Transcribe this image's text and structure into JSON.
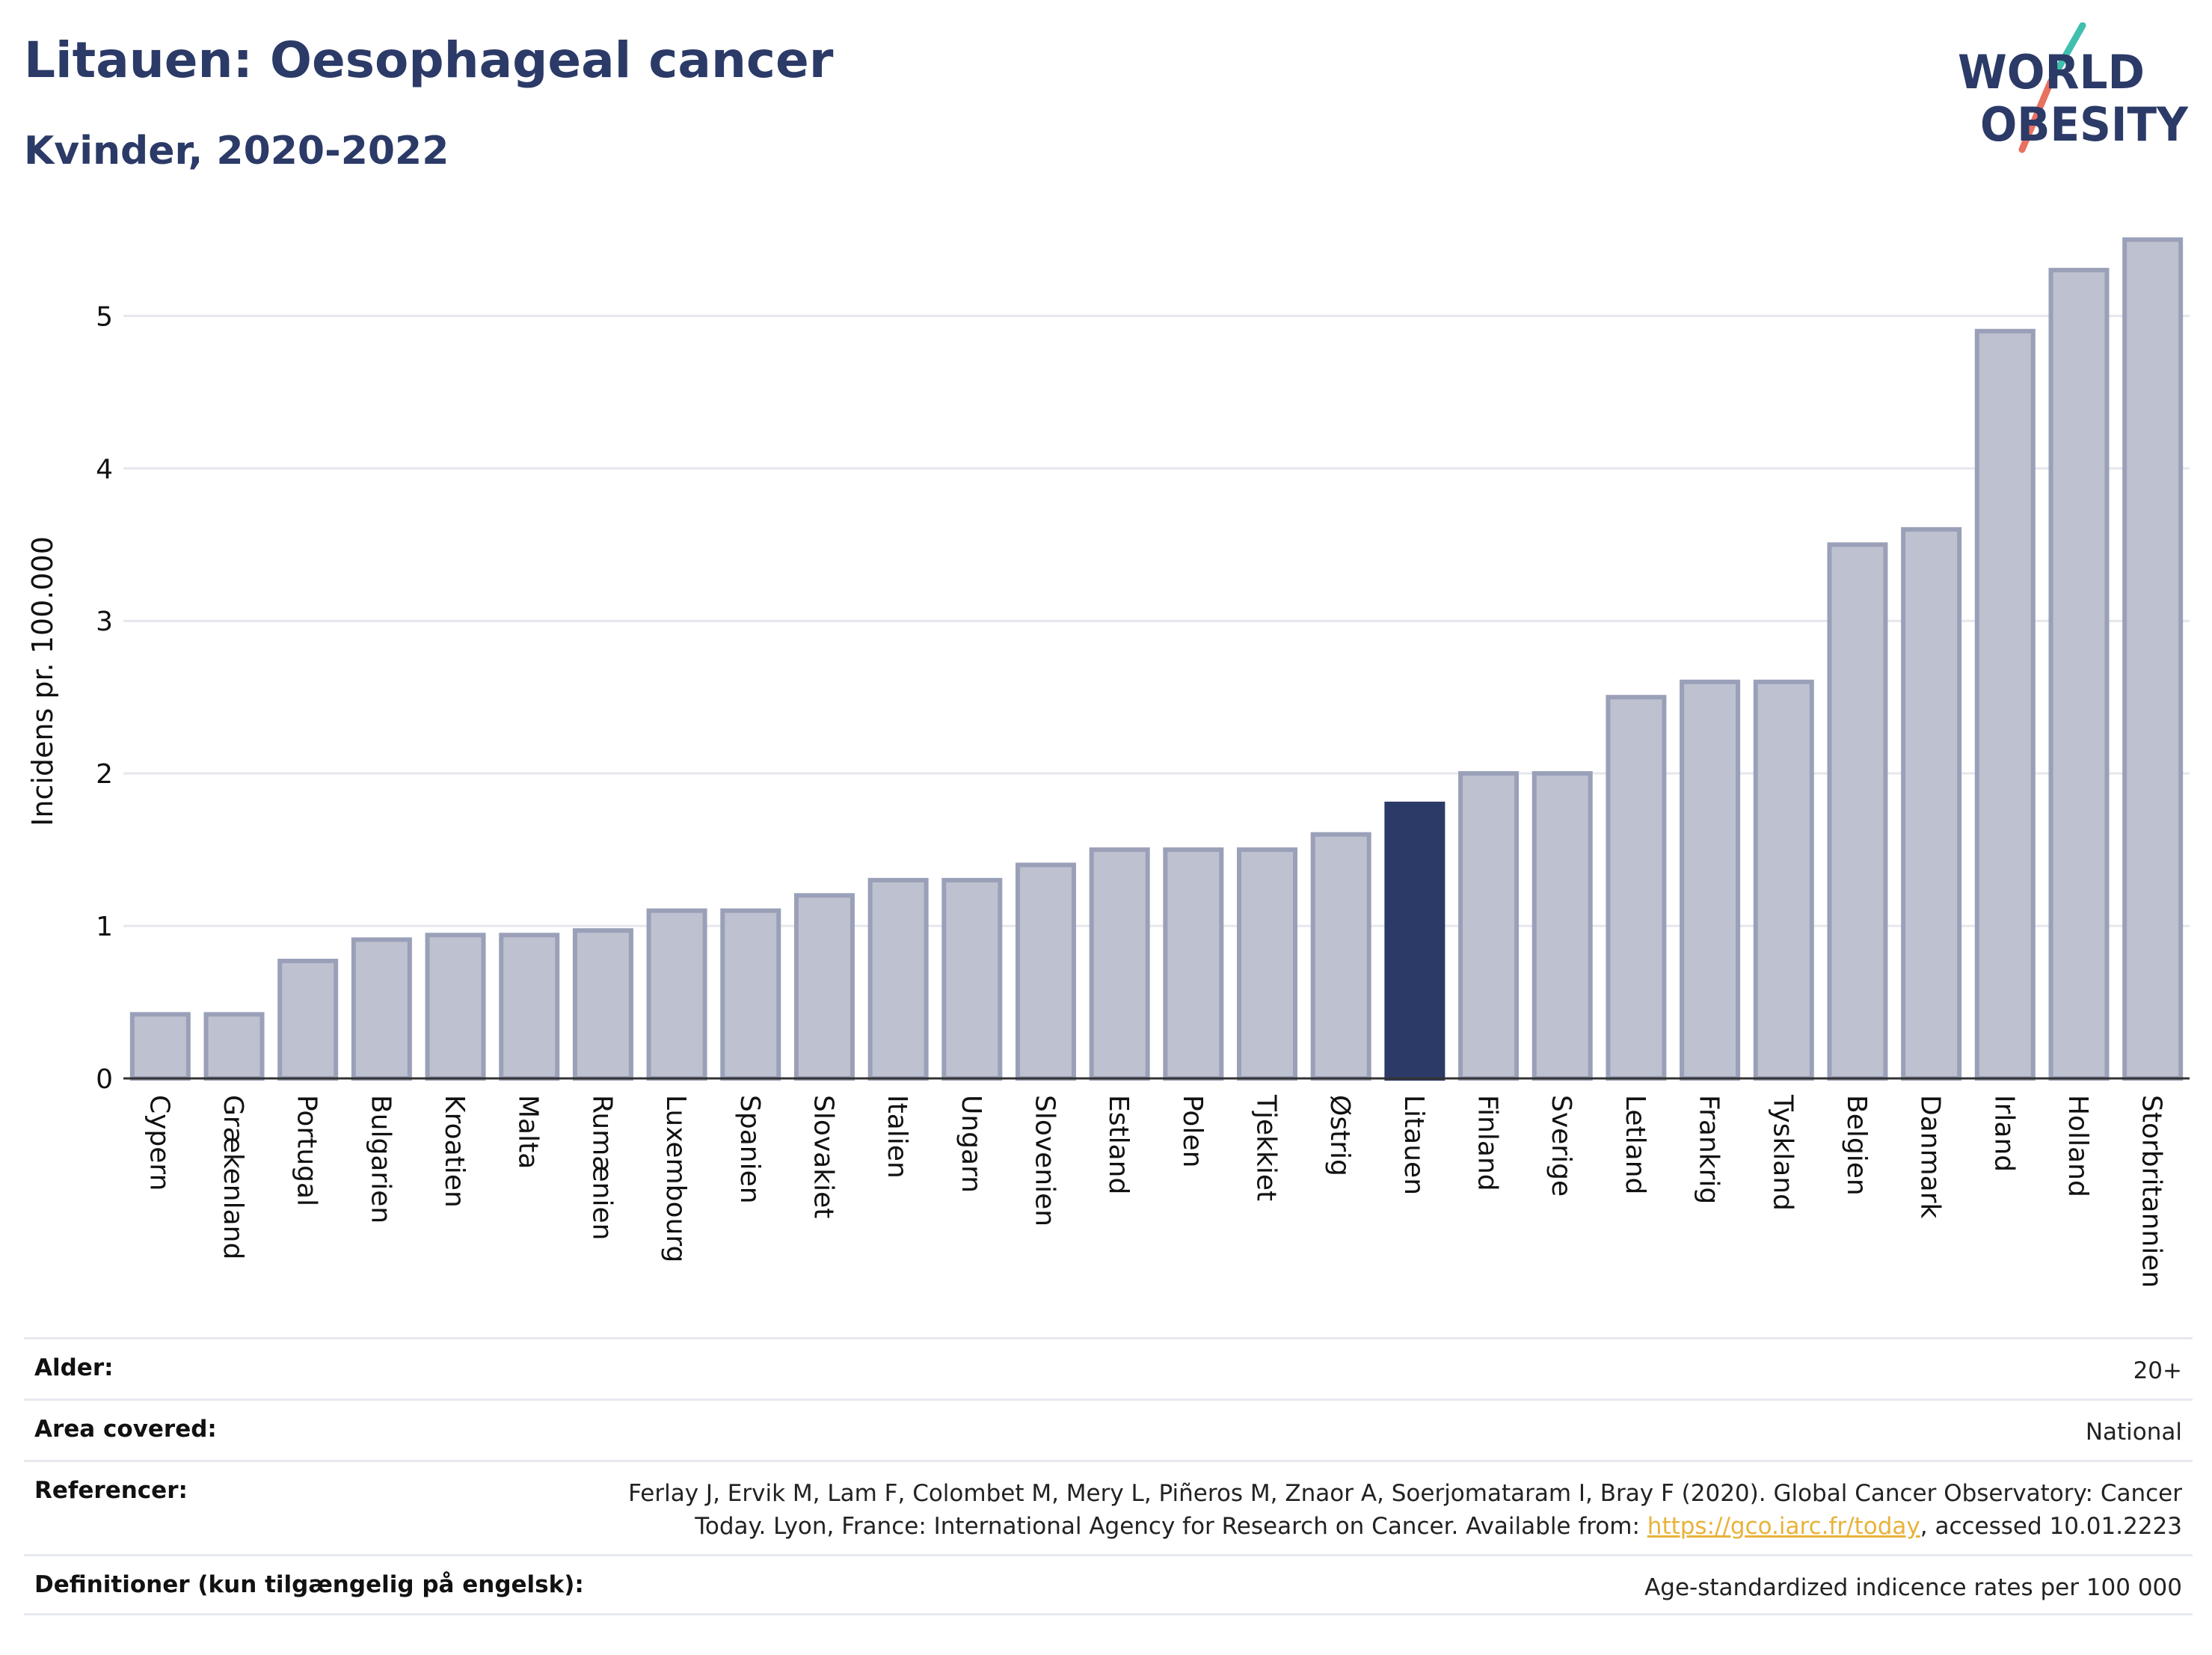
{
  "header": {
    "title": "Litauen: Oesophageal cancer",
    "subtitle": "Kvinder, 2020-2022"
  },
  "logo": {
    "line1": "WORLD",
    "line2": "OBESITY",
    "colors": {
      "text": "#2b3a67",
      "slash_teal": "#3fbfae",
      "slash_coral": "#e8715f"
    }
  },
  "chart_data": {
    "type": "bar",
    "title": "Litauen: Oesophageal cancer",
    "subtitle": "Kvinder, 2020-2022",
    "ylabel": "Incidens pr. 100.000",
    "xlabel": "",
    "ylim": [
      0,
      5.6
    ],
    "yticks": [
      0,
      1,
      2,
      3,
      4,
      5
    ],
    "grid": true,
    "highlight": "Litauen",
    "colors": {
      "bar": "#bec1cf",
      "bar_border": "#9aa0b8",
      "highlight": "#2b3a67",
      "grid": "#e6e6ee"
    },
    "categories": [
      "Cypern",
      "Grækenland",
      "Portugal",
      "Bulgarien",
      "Kroatien",
      "Malta",
      "Rumænien",
      "Luxembourg",
      "Spanien",
      "Slovakiet",
      "Italien",
      "Ungarn",
      "Slovenien",
      "Estland",
      "Polen",
      "Tjekkiet",
      "Østrig",
      "Litauen",
      "Finland",
      "Sverige",
      "Letland",
      "Frankrig",
      "Tyskland",
      "Belgien",
      "Danmark",
      "Irland",
      "Holland",
      "Storbritannien"
    ],
    "values": [
      0.42,
      0.42,
      0.77,
      0.91,
      0.94,
      0.94,
      0.97,
      1.1,
      1.1,
      1.2,
      1.3,
      1.3,
      1.4,
      1.5,
      1.5,
      1.5,
      1.6,
      1.8,
      2.0,
      2.0,
      2.5,
      2.6,
      2.6,
      3.5,
      3.6,
      4.9,
      5.3,
      5.5
    ]
  },
  "info": {
    "rows": [
      {
        "label": "Alder:",
        "value": "20+"
      },
      {
        "label": "Area covered:",
        "value": "National"
      },
      {
        "label": "Referencer:",
        "value_line1": "Ferlay J, Ervik M, Lam F, Colombet M, Mery L, Piñeros M, Znaor A, Soerjomataram I, Bray F (2020). Global Cancer Observatory: Cancer",
        "value_line2_pre": "Today. Lyon, France: International Agency for Research on Cancer. Available from: ",
        "link": "https://gco.iarc.fr/today",
        "value_line2_post": ", accessed 10.01.2223"
      },
      {
        "label": "Definitioner (kun tilgængelig på engelsk):",
        "value": "Age-standardized indicence rates per 100 000"
      }
    ]
  }
}
